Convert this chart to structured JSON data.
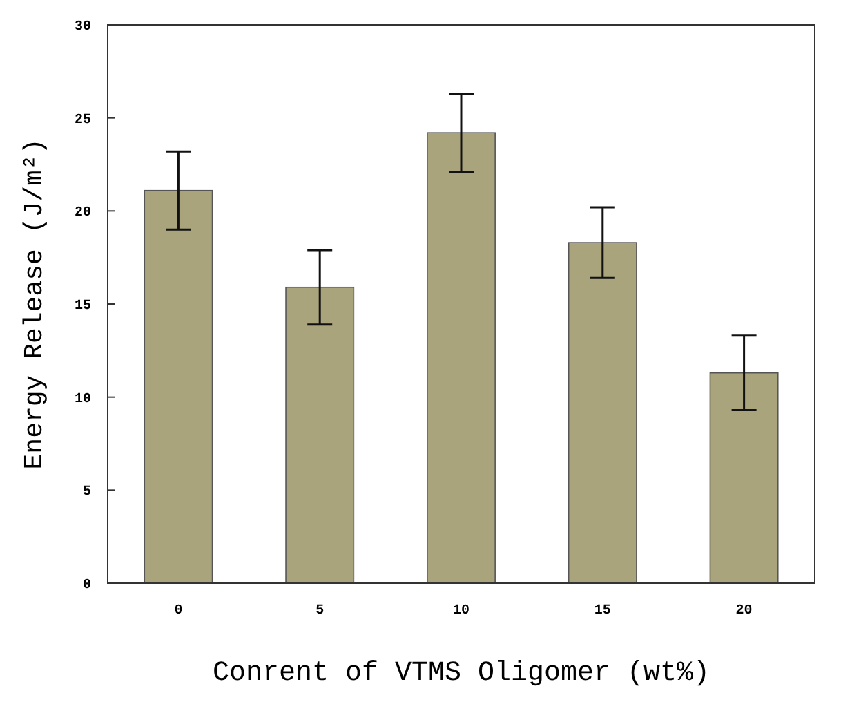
{
  "chart_data": {
    "type": "bar",
    "xlabel": "Conrent of VTMS Oligomer (wt%)",
    "ylabel": "Energy Release (J/m²)",
    "categories": [
      "0",
      "5",
      "10",
      "15",
      "20"
    ],
    "values": [
      21.1,
      15.9,
      24.2,
      18.3,
      11.3
    ],
    "errors": [
      2.1,
      2.0,
      2.1,
      1.9,
      2.0
    ],
    "color": "#a9a47c",
    "ylim": [
      0,
      30
    ],
    "yticks": [
      0,
      5,
      10,
      15,
      20,
      25,
      30
    ],
    "grid": false
  }
}
